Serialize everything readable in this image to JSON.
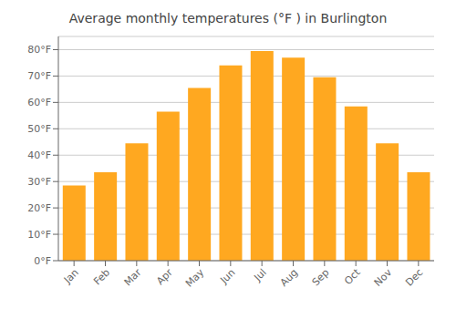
{
  "chart_data": {
    "type": "bar",
    "title": "Average monthly temperatures (°F ) in Burlington",
    "categories": [
      "Jan",
      "Feb",
      "Mar",
      "Apr",
      "May",
      "Jun",
      "Jul",
      "Aug",
      "Sep",
      "Oct",
      "Nov",
      "Dec"
    ],
    "values": [
      28.5,
      33.5,
      44.5,
      56.5,
      65.5,
      74.0,
      79.5,
      77.0,
      69.5,
      58.5,
      44.5,
      33.5
    ],
    "color": "#FFA820",
    "ylim": [
      0,
      85
    ],
    "yticks": [
      {
        "value": 0,
        "label": "0°F"
      },
      {
        "value": 10,
        "label": "10°F"
      },
      {
        "value": 20,
        "label": "20°F"
      },
      {
        "value": 30,
        "label": "30°F"
      },
      {
        "value": 40,
        "label": "40°F"
      },
      {
        "value": 50,
        "label": "50°F"
      },
      {
        "value": 60,
        "label": "60°F"
      },
      {
        "value": 70,
        "label": "70°F"
      },
      {
        "value": 80,
        "label": "80°F"
      }
    ],
    "grid": true
  }
}
